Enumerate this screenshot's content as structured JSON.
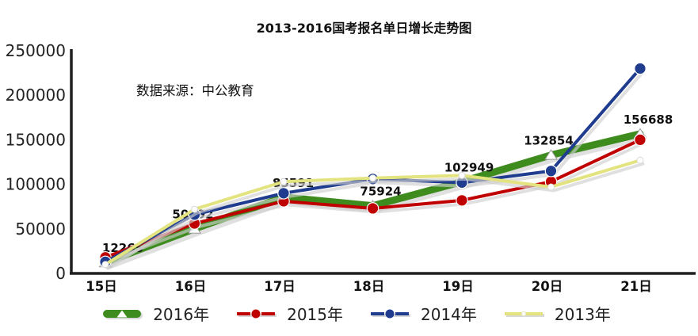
{
  "title": "2013-2016国考报名单日增长走势图",
  "source_note": "数据来源：中公教育",
  "chart_data": {
    "type": "line",
    "categories": [
      "15日",
      "16日",
      "17日",
      "18日",
      "19日",
      "20日",
      "21日"
    ],
    "series": [
      {
        "name": "2016年",
        "color": "#3E8C1E",
        "line_width": 9,
        "marker": "triangle-white",
        "values": [
          12265,
          50092,
          85591,
          75924,
          102949,
          132854,
          156688
        ],
        "labeled": true
      },
      {
        "name": "2015年",
        "color": "#C00000",
        "line_width": 4,
        "marker": "circle",
        "values": [
          18000,
          56000,
          81000,
          73000,
          82000,
          103000,
          150000
        ],
        "labeled": false
      },
      {
        "name": "2014年",
        "color": "#203C8E",
        "line_width": 4,
        "marker": "circle",
        "values": [
          13000,
          66000,
          90000,
          106000,
          102000,
          115000,
          230000
        ],
        "labeled": false
      },
      {
        "name": "2013年",
        "color": "#E3E380",
        "line_width": 4,
        "marker": "circle-white-small",
        "values": [
          10000,
          72000,
          103000,
          107000,
          110000,
          97000,
          127000
        ],
        "labeled": false
      }
    ],
    "data_labels": [
      "12265",
      "50092",
      "85591",
      "75924",
      "102949",
      "132854",
      "156688"
    ],
    "xlabel": "",
    "ylabel": "",
    "ylim": [
      0,
      250000
    ],
    "y_ticks": [
      "0",
      "50000",
      "100000",
      "150000",
      "200000",
      "250000"
    ],
    "grid": false,
    "legend_position": "bottom",
    "shadow_color": "#CFCFCF",
    "axis_color": "#1F1F1F",
    "text_color": "#222222"
  }
}
